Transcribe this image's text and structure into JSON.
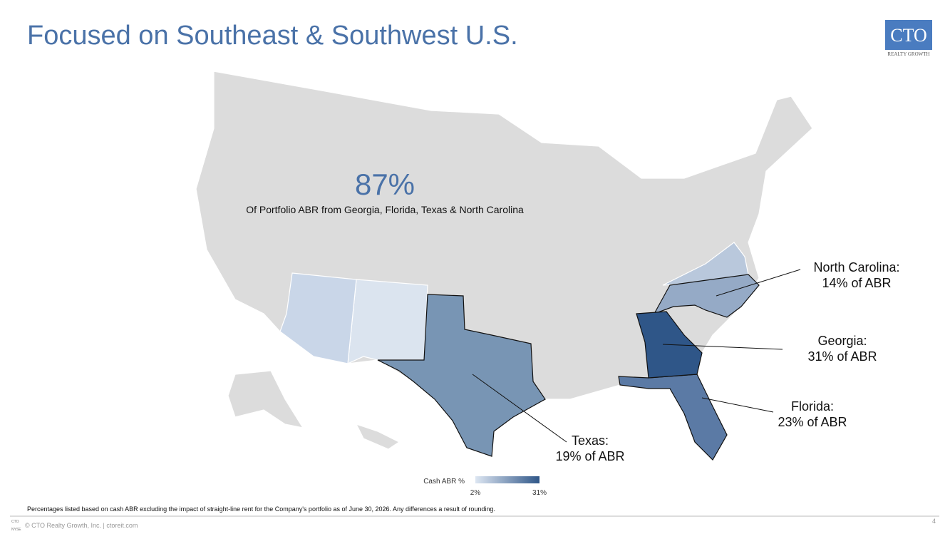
{
  "header": {
    "title": "Focused on Southeast & Southwest U.S.",
    "logo": {
      "mark": "CTO",
      "tagline": "REALTY GROWTH"
    }
  },
  "headline": {
    "value": "87%",
    "caption": "Of Portfolio ABR from Georgia, Florida, Texas & North Carolina"
  },
  "callouts": [
    {
      "state": "North Carolina:",
      "share": "14% of ABR"
    },
    {
      "state": "Georgia:",
      "share": "31% of ABR"
    },
    {
      "state": "Florida:",
      "share": "23% of ABR"
    },
    {
      "state": "Texas:",
      "share": "19% of ABR"
    }
  ],
  "legend": {
    "title": "Cash ABR %",
    "min": "2%",
    "max": "31%"
  },
  "footnote": "Percentages listed based on cash ABR excluding the impact of straight-line rent for the Company's portfolio as of June 30, 2026. Any differences a result of rounding.",
  "footer": {
    "badge": [
      "CTO",
      "NYSE"
    ],
    "copyright": "© CTO Realty Growth, Inc. | ctoreit.com",
    "page": "4"
  }
}
